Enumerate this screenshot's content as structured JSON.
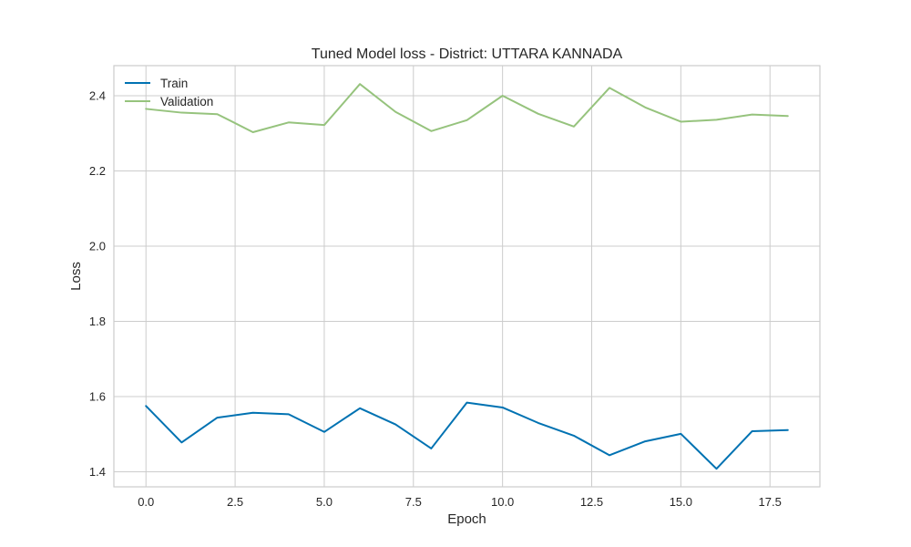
{
  "chart_data": {
    "type": "line",
    "title": "Tuned Model loss - District: UTTARA KANNADA",
    "xlabel": "Epoch",
    "ylabel": "Loss",
    "xlim": [
      -0.9,
      18.9
    ],
    "ylim": [
      1.36,
      2.48
    ],
    "x_ticks": [
      0.0,
      2.5,
      5.0,
      7.5,
      10.0,
      12.5,
      15.0,
      17.5
    ],
    "x_tick_labels": [
      "0.0",
      "2.5",
      "5.0",
      "7.5",
      "10.0",
      "12.5",
      "15.0",
      "17.5"
    ],
    "y_ticks": [
      1.4,
      1.6,
      1.8,
      2.0,
      2.2,
      2.4
    ],
    "y_tick_labels": [
      "1.4",
      "1.6",
      "1.8",
      "2.0",
      "2.2",
      "2.4"
    ],
    "grid": true,
    "legend_position": "top-left",
    "x": [
      0,
      1,
      2,
      3,
      4,
      5,
      6,
      7,
      8,
      9,
      10,
      11,
      12,
      13,
      14,
      15,
      16,
      17,
      18
    ],
    "series": [
      {
        "name": "Train",
        "color": "#0072b2",
        "values": [
          1.575,
          1.478,
          1.544,
          1.557,
          1.553,
          1.506,
          1.569,
          1.526,
          1.462,
          1.584,
          1.571,
          1.53,
          1.496,
          1.444,
          1.481,
          1.501,
          1.408,
          1.508,
          1.511
        ]
      },
      {
        "name": "Validation",
        "color": "#96c37d",
        "values": [
          2.365,
          2.355,
          2.351,
          2.303,
          2.329,
          2.322,
          2.431,
          2.357,
          2.306,
          2.335,
          2.4,
          2.352,
          2.318,
          2.421,
          2.369,
          2.331,
          2.336,
          2.35,
          2.346
        ]
      }
    ]
  }
}
